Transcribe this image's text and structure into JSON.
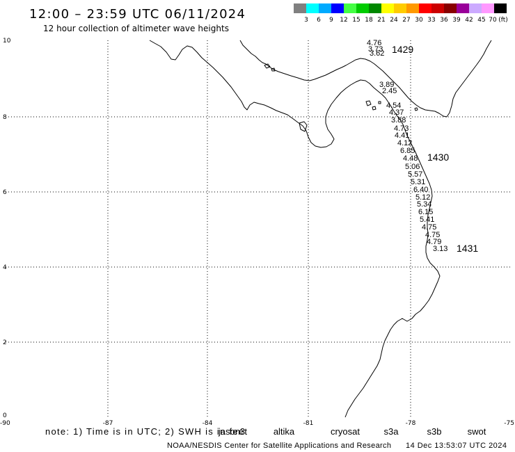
{
  "title": "12:00 – 23:59 UTC 06/11/2024",
  "subtitle": "12 hour collection of altimeter wave heights",
  "legend": {
    "labels": [
      "3",
      "6",
      "9",
      "12",
      "15",
      "18",
      "21",
      "24",
      "27",
      "30",
      "33",
      "36",
      "39",
      "42",
      "45",
      "70"
    ],
    "unit": "(ft)",
    "colors": [
      "#808080",
      "#00ffff",
      "#00aaff",
      "#0000ff",
      "#44ff44",
      "#00cc00",
      "#008800",
      "#ffff00",
      "#ffcc00",
      "#ff9900",
      "#ff0000",
      "#cc0000",
      "#880000",
      "#990099",
      "#ccaaff",
      "#ff99ff",
      "#000000"
    ]
  },
  "axes": {
    "lat_labels": [
      "10",
      "8",
      "6",
      "4",
      "2",
      "0"
    ],
    "lon_labels": [
      "-90",
      "-87",
      "-84",
      "-81",
      "-78",
      "-75"
    ]
  },
  "pass_color": "#009900",
  "passes": [
    {
      "label": "1429"
    },
    {
      "label": "1430"
    },
    {
      "label": "1431"
    }
  ],
  "readings": [
    {
      "value": "4.76",
      "color": "#00dede"
    },
    {
      "value": "3.73",
      "color": "#00dede"
    },
    {
      "value": "3.62",
      "color": "#00dede"
    },
    {
      "value": "3.89",
      "color": "#888888"
    },
    {
      "value": "2.45",
      "color": "#888888"
    },
    {
      "value": "4.54",
      "color": "#00dede"
    },
    {
      "value": "4.37",
      "color": "#00dede"
    },
    {
      "value": "3.88",
      "color": "#00dede"
    },
    {
      "value": "4.73",
      "color": "#00dede"
    },
    {
      "value": "4.41",
      "color": "#00dede"
    },
    {
      "value": "4.12",
      "color": "#00dede"
    },
    {
      "value": "6.85",
      "color": "#00dede"
    },
    {
      "value": "4.48",
      "color": "#00dede"
    },
    {
      "value": "5.06",
      "color": "#00dede"
    },
    {
      "value": "5.57",
      "color": "#00dede"
    },
    {
      "value": "5.31",
      "color": "#00dede"
    },
    {
      "value": "6.40",
      "color": "#00dede"
    },
    {
      "value": "5.12",
      "color": "#00dede"
    },
    {
      "value": "5.34",
      "color": "#00dede"
    },
    {
      "value": "6.15",
      "color": "#00dede"
    },
    {
      "value": "5.41",
      "color": "#00dede"
    },
    {
      "value": "4.75",
      "color": "#00dede"
    },
    {
      "value": "4.75",
      "color": "#00dede"
    },
    {
      "value": "4.79",
      "color": "#00dede"
    },
    {
      "value": "3.13",
      "color": "#00dede"
    }
  ],
  "note": "note: 1) Time is in UTC; 2) SWH is in feet",
  "satellites": [
    {
      "name": "jason3",
      "color": "#007700"
    },
    {
      "name": "altika",
      "color": "#ff9900"
    },
    {
      "name": "cryosat",
      "color": "#ff0000"
    },
    {
      "name": "s3a",
      "color": "#aa0000"
    },
    {
      "name": "s3b",
      "color": "#c0a8ff"
    },
    {
      "name": "swot",
      "color": "#ff99ff"
    }
  ],
  "footer": {
    "credit": "NOAA/NESDIS Center for Satellite Applications and Research",
    "timestamp": "14 Dec 13:53:07 UTC 2024"
  }
}
